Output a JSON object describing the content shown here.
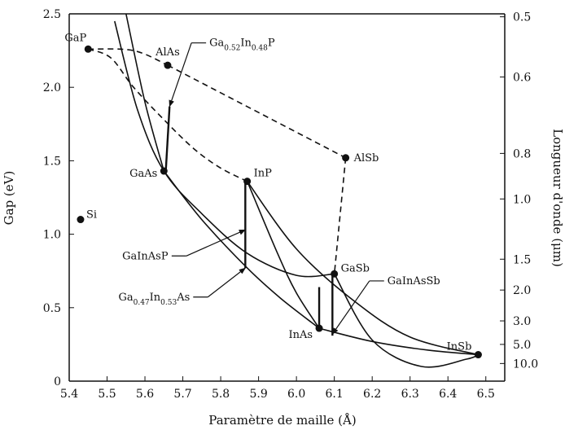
{
  "chart_data": {
    "type": "scatter",
    "xlabel": "Paramètre de maille (Å)",
    "ylabel": "Gap (eV)",
    "y2label": "Longueur d'onde (μm)",
    "xlim": [
      5.4,
      6.55
    ],
    "ylim": [
      0,
      2.5
    ],
    "x_ticks": [
      "5.4",
      "5.5",
      "5.6",
      "5.7",
      "5.8",
      "5.9",
      "6.0",
      "6.1",
      "6.2",
      "6.3",
      "6.4",
      "6.5"
    ],
    "y_ticks": [
      "0",
      "0.5",
      "1.0",
      "1.5",
      "2.0",
      "2.5"
    ],
    "y2_ticks": [
      {
        "label": "0.5",
        "energy": 2.48
      },
      {
        "label": "0.6",
        "energy": 2.07
      },
      {
        "label": "0.8",
        "energy": 1.55
      },
      {
        "label": "1.0",
        "energy": 1.24
      },
      {
        "label": "1.5",
        "energy": 0.83
      },
      {
        "label": "2.0",
        "energy": 0.62
      },
      {
        "label": "3.0",
        "energy": 0.41
      },
      {
        "label": "5.0",
        "energy": 0.25
      },
      {
        "label": "10.0",
        "energy": 0.12
      }
    ],
    "points": [
      {
        "label": "GaP",
        "x": 5.45,
        "y": 2.26
      },
      {
        "label": "AlAs",
        "x": 5.66,
        "y": 2.15
      },
      {
        "label": "GaAs",
        "x": 5.65,
        "y": 1.43
      },
      {
        "label": "InP",
        "x": 5.87,
        "y": 1.36
      },
      {
        "label": "AlSb",
        "x": 6.13,
        "y": 1.52
      },
      {
        "label": "Si",
        "x": 5.43,
        "y": 1.1
      },
      {
        "label": "GaSb",
        "x": 6.1,
        "y": 0.73
      },
      {
        "label": "InAs",
        "x": 6.06,
        "y": 0.36
      },
      {
        "label": "InSb",
        "x": 6.48,
        "y": 0.18
      }
    ],
    "curves": [
      {
        "from": "GaP",
        "to": "InP",
        "style": "dashed",
        "values": [
          [
            5.45,
            2.26
          ],
          [
            5.51,
            2.2
          ],
          [
            5.57,
            2.0
          ],
          [
            5.65,
            1.78
          ],
          [
            5.73,
            1.58
          ],
          [
            5.8,
            1.45
          ],
          [
            5.87,
            1.36
          ]
        ]
      },
      {
        "from": "GaP",
        "to": "AlAs",
        "style": "dashed",
        "values": [
          [
            5.45,
            2.26
          ],
          [
            5.57,
            2.25
          ],
          [
            5.66,
            2.15
          ]
        ]
      },
      {
        "from": "AlAs",
        "to": "AlSb",
        "style": "dashed",
        "values": [
          [
            5.66,
            2.15
          ],
          [
            6.13,
            1.52
          ]
        ]
      },
      {
        "from": "AlSb",
        "to": "GaSb",
        "style": "dashed",
        "values": [
          [
            6.13,
            1.52
          ],
          [
            6.1,
            0.73
          ]
        ]
      },
      {
        "from": "GaAs",
        "to": "GaSb",
        "style": "solid",
        "values": [
          [
            5.52,
            2.45
          ],
          [
            5.58,
            1.85
          ],
          [
            5.65,
            1.43
          ],
          [
            5.75,
            1.14
          ],
          [
            5.87,
            0.87
          ],
          [
            6.0,
            0.72
          ],
          [
            6.1,
            0.73
          ]
        ]
      },
      {
        "from": "GaAs",
        "to": "InAs",
        "style": "solid",
        "values": [
          [
            5.65,
            1.43
          ],
          [
            5.75,
            1.1
          ],
          [
            5.87,
            0.77
          ],
          [
            5.96,
            0.56
          ],
          [
            6.06,
            0.36
          ]
        ]
      },
      {
        "from": "InP",
        "to": "InAs",
        "style": "solid",
        "values": [
          [
            5.87,
            1.36
          ],
          [
            5.95,
            0.87
          ],
          [
            6.0,
            0.6
          ],
          [
            6.06,
            0.36
          ]
        ]
      },
      {
        "from": "InAs",
        "to": "InSb",
        "style": "solid",
        "values": [
          [
            6.06,
            0.36
          ],
          [
            6.2,
            0.27
          ],
          [
            6.35,
            0.21
          ],
          [
            6.48,
            0.18
          ]
        ]
      },
      {
        "from": "InP",
        "to": "InSb",
        "style": "solid",
        "values": [
          [
            5.87,
            1.36
          ],
          [
            6.0,
            0.9
          ],
          [
            6.15,
            0.55
          ],
          [
            6.3,
            0.3
          ],
          [
            6.48,
            0.18
          ]
        ]
      },
      {
        "from": "GaSb",
        "to": "InSb",
        "style": "solid",
        "values": [
          [
            6.1,
            0.73
          ],
          [
            6.2,
            0.28
          ],
          [
            6.33,
            0.1
          ],
          [
            6.45,
            0.15
          ],
          [
            6.48,
            0.18
          ]
        ]
      },
      {
        "from": "top",
        "to": "GaAs",
        "style": "solid",
        "values": [
          [
            5.55,
            2.5
          ],
          [
            5.6,
            1.9
          ],
          [
            5.65,
            1.43
          ]
        ]
      }
    ],
    "segments": [
      {
        "name": "GaAs-AlAs",
        "values": [
          [
            5.655,
            1.43
          ],
          [
            5.665,
            1.87
          ]
        ]
      },
      {
        "name": "InP vertical",
        "values": [
          [
            5.865,
            1.36
          ],
          [
            5.865,
            0.77
          ]
        ]
      },
      {
        "name": "InAs vertical",
        "values": [
          [
            6.06,
            0.36
          ],
          [
            6.06,
            0.64
          ]
        ]
      },
      {
        "name": "GaSb vertical",
        "values": [
          [
            6.095,
            0.31
          ],
          [
            6.095,
            0.73
          ]
        ]
      }
    ],
    "annotations": [
      {
        "parts": [
          {
            "t": "Ga",
            "sub": false
          },
          {
            "t": "0.52",
            "sub": true
          },
          {
            "t": "In",
            "sub": false
          },
          {
            "t": "0.48",
            "sub": true
          },
          {
            "t": "P",
            "sub": false
          }
        ],
        "text_x": 5.77,
        "text_y": 2.28,
        "arrow_to": [
          5.665,
          1.87
        ]
      },
      {
        "parts": [
          {
            "t": "GaInAsP",
            "sub": false
          }
        ],
        "text_x": 5.54,
        "text_y": 0.83,
        "arrow_to": [
          5.865,
          1.03
        ]
      },
      {
        "parts": [
          {
            "t": "Ga",
            "sub": false
          },
          {
            "t": "0.47",
            "sub": true
          },
          {
            "t": "In",
            "sub": false
          },
          {
            "t": "0.53",
            "sub": true
          },
          {
            "t": "As",
            "sub": false
          }
        ],
        "text_x": 5.53,
        "text_y": 0.55,
        "arrow_to": [
          5.865,
          0.77
        ]
      },
      {
        "parts": [
          {
            "t": "GaInAsSb",
            "sub": false
          }
        ],
        "text_x": 6.24,
        "text_y": 0.66,
        "arrow_to": [
          6.095,
          0.32
        ]
      }
    ],
    "grid": false
  }
}
